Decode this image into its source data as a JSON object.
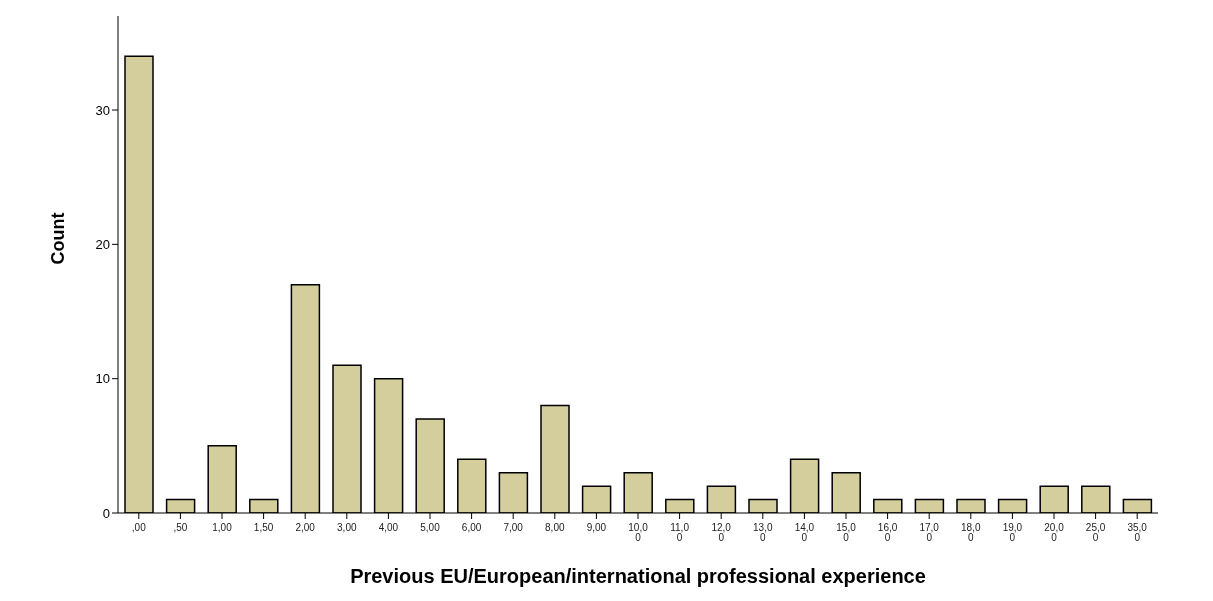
{
  "chart_data": {
    "type": "bar",
    "xlabel": "Previous EU/European/international professional experience",
    "ylabel": "Count",
    "categories": [
      ",00",
      ",50",
      "1,00",
      "1,50",
      "2,00",
      "3,00",
      "4,00",
      "5,00",
      "6,00",
      "7,00",
      "8,00",
      "9,00",
      "10,00",
      "11,00",
      "12,00",
      "13,00",
      "14,00",
      "15,00",
      "16,00",
      "17,00",
      "18,00",
      "19,00",
      "20,00",
      "25,00",
      "35,00"
    ],
    "values": [
      34,
      1,
      5,
      1,
      17,
      11,
      10,
      7,
      4,
      3,
      8,
      2,
      3,
      1,
      2,
      1,
      4,
      3,
      1,
      1,
      1,
      1,
      2,
      2,
      1
    ],
    "color": "#d3ce9b",
    "ylim": [
      0,
      37
    ],
    "yticks": [
      0,
      10,
      20,
      30
    ],
    "grid": false,
    "legend": false
  }
}
